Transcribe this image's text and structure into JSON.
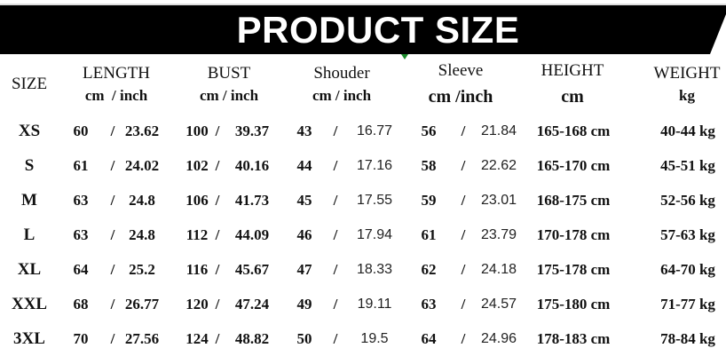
{
  "title": "PRODUCT SIZE",
  "headers": {
    "size": "SIZE",
    "length": {
      "label": "LENGTH",
      "unit": "cm  / inch"
    },
    "bust": {
      "label": "BUST",
      "unit": "cm / inch"
    },
    "shoulder": {
      "label": "Shouder",
      "unit": "cm / inch"
    },
    "sleeve": {
      "label": "Sleeve",
      "unit": "cm /inch"
    },
    "height": {
      "label": "HEIGHT",
      "unit": "cm"
    },
    "weight": {
      "label": "WEIGHT",
      "unit": "kg"
    }
  },
  "rows": [
    {
      "size": "XS",
      "length_cm": "60",
      "length_in": "23.62",
      "bust_cm": "100",
      "bust_in": "39.37",
      "shoulder_cm": "43",
      "shoulder_in": "16.77",
      "sleeve_cm": "56",
      "sleeve_in": "21.84",
      "height": "165-168 cm",
      "weight": "40-44 kg"
    },
    {
      "size": "S",
      "length_cm": "61",
      "length_in": "24.02",
      "bust_cm": "102",
      "bust_in": "40.16",
      "shoulder_cm": "44",
      "shoulder_in": "17.16",
      "sleeve_cm": "58",
      "sleeve_in": "22.62",
      "height": "165-170 cm",
      "weight": "45-51 kg"
    },
    {
      "size": "M",
      "length_cm": "63",
      "length_in": "24.8",
      "bust_cm": "106",
      "bust_in": "41.73",
      "shoulder_cm": "45",
      "shoulder_in": "17.55",
      "sleeve_cm": "59",
      "sleeve_in": "23.01",
      "height": "168-175 cm",
      "weight": "52-56 kg"
    },
    {
      "size": "L",
      "length_cm": "63",
      "length_in": "24.8",
      "bust_cm": "112",
      "bust_in": "44.09",
      "shoulder_cm": "46",
      "shoulder_in": "17.94",
      "sleeve_cm": "61",
      "sleeve_in": "23.79",
      "height": "170-178 cm",
      "weight": "57-63 kg"
    },
    {
      "size": "XL",
      "length_cm": "64",
      "length_in": "25.2",
      "bust_cm": "116",
      "bust_in": "45.67",
      "shoulder_cm": "47",
      "shoulder_in": "18.33",
      "sleeve_cm": "62",
      "sleeve_in": "24.18",
      "height": "175-178 cm",
      "weight": "64-70 kg"
    },
    {
      "size": "XXL",
      "length_cm": "68",
      "length_in": "26.77",
      "bust_cm": "120",
      "bust_in": "47.24",
      "shoulder_cm": "49",
      "shoulder_in": "19.11",
      "sleeve_cm": "63",
      "sleeve_in": "24.57",
      "height": "175-180 cm",
      "weight": "71-77 kg"
    },
    {
      "size": "3XL",
      "length_cm": "70",
      "length_in": "27.56",
      "bust_cm": "124",
      "bust_in": "48.82",
      "shoulder_cm": "50",
      "shoulder_in": "19.5",
      "sleeve_cm": "64",
      "sleeve_in": "24.96",
      "height": "178-183 cm",
      "weight": "78-84 kg"
    }
  ],
  "separator": "/",
  "colors": {
    "banner": "#000000",
    "title": "#ffffff",
    "accent_mark": "#1a8a2a"
  }
}
